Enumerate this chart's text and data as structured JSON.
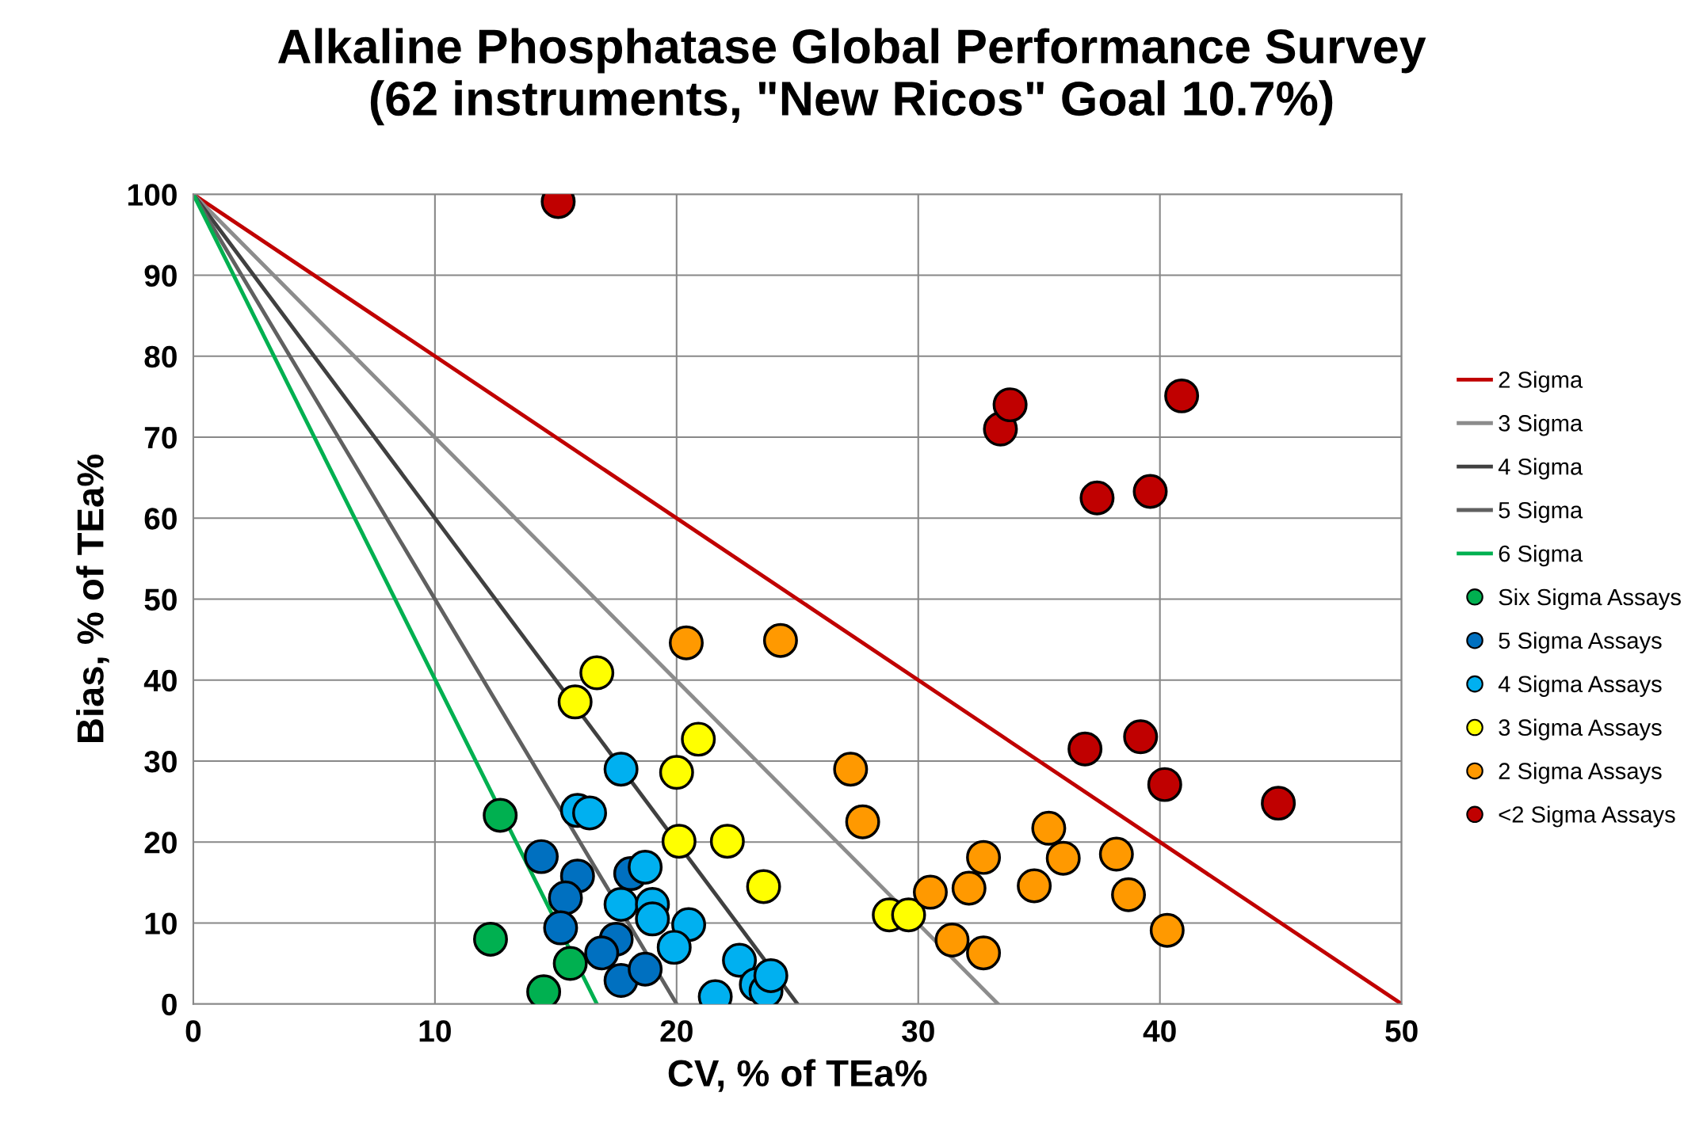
{
  "chart_data": {
    "type": "scatter",
    "title": "Alkaline Phosphatase Global Performance Survey\n(62 instruments, \"New Ricos\" Goal 10.7%)",
    "xlabel": "CV, % of TEa%",
    "ylabel": "Bias, % of TEa%",
    "xlim": [
      0,
      50
    ],
    "ylim": [
      0,
      100
    ],
    "xticks": [
      0,
      10,
      20,
      30,
      40,
      50
    ],
    "yticks": [
      0,
      10,
      20,
      30,
      40,
      50,
      60,
      70,
      80,
      90,
      100
    ],
    "grid": true,
    "legend": "right",
    "marker": "circle",
    "series": [
      {
        "name": "2 Sigma",
        "type": "line",
        "color": "#c00000",
        "x": [
          0,
          50
        ],
        "values": [
          100,
          0
        ],
        "marker": "none"
      },
      {
        "name": "3 Sigma",
        "type": "line",
        "color": "#8c8c8c",
        "x": [
          0,
          33.3
        ],
        "values": [
          100,
          0
        ],
        "marker": "none"
      },
      {
        "name": "4 Sigma",
        "type": "line",
        "color": "#404040",
        "x": [
          0,
          25
        ],
        "values": [
          100,
          0
        ],
        "marker": "none"
      },
      {
        "name": "5 Sigma",
        "type": "line",
        "color": "#606060",
        "x": [
          0,
          20
        ],
        "values": [
          100,
          0
        ],
        "marker": "none"
      },
      {
        "name": "6 Sigma",
        "type": "line",
        "color": "#00b050",
        "x": [
          0,
          16.7
        ],
        "values": [
          100,
          0
        ],
        "marker": "none"
      },
      {
        "name": "Six Sigma Assays",
        "color": "#00b050",
        "x": [
          12.7,
          12.3,
          15.6,
          14.5
        ],
        "values": [
          23.3,
          8.0,
          5.0,
          1.5
        ]
      },
      {
        "name": "5 Sigma Assays",
        "color": "#0070c0",
        "x": [
          14.4,
          15.9,
          15.4,
          15.2,
          18.1,
          17.5,
          16.9,
          17.7,
          18.7
        ],
        "values": [
          18.2,
          15.8,
          13.1,
          9.4,
          16.1,
          8.0,
          6.3,
          2.9,
          4.3
        ]
      },
      {
        "name": "4 Sigma Assays",
        "color": "#00b0f0",
        "x": [
          17.7,
          15.9,
          16.4,
          18.7,
          17.7,
          19.0,
          19.0,
          20.5,
          19.9,
          21.6,
          22.6,
          23.3,
          23.7,
          23.9
        ],
        "values": [
          29.0,
          23.9,
          23.6,
          16.9,
          12.3,
          12.3,
          10.5,
          9.8,
          7.0,
          0.9,
          5.4,
          2.4,
          1.6,
          3.5
        ]
      },
      {
        "name": "3 Sigma Assays",
        "color": "#ffff00",
        "x": [
          16.7,
          15.8,
          20.9,
          20.0,
          20.1,
          22.1,
          23.6,
          28.8,
          29.6
        ],
        "values": [
          40.9,
          37.3,
          32.7,
          28.6,
          20.1,
          20.1,
          14.5,
          11.0,
          11.0
        ]
      },
      {
        "name": "2 Sigma Assays",
        "color": "#ff9900",
        "x": [
          20.4,
          24.3,
          27.2,
          27.7,
          30.5,
          32.1,
          32.7,
          31.4,
          32.7,
          34.8,
          35.4,
          36.0,
          38.2,
          38.7,
          40.3
        ],
        "values": [
          44.6,
          44.9,
          29.0,
          22.5,
          13.8,
          14.3,
          18.1,
          7.9,
          6.3,
          14.6,
          21.7,
          18.0,
          18.5,
          13.5,
          9.1
        ]
      },
      {
        "name": "<2 Sigma Assays",
        "color": "#c00000",
        "x": [
          15.1,
          33.4,
          33.8,
          40.9,
          37.4,
          39.6,
          36.9,
          39.2,
          40.2,
          44.9
        ],
        "values": [
          99.1,
          71.0,
          74.0,
          75.1,
          62.5,
          63.3,
          31.5,
          33.0,
          27.1,
          24.8
        ]
      }
    ]
  }
}
